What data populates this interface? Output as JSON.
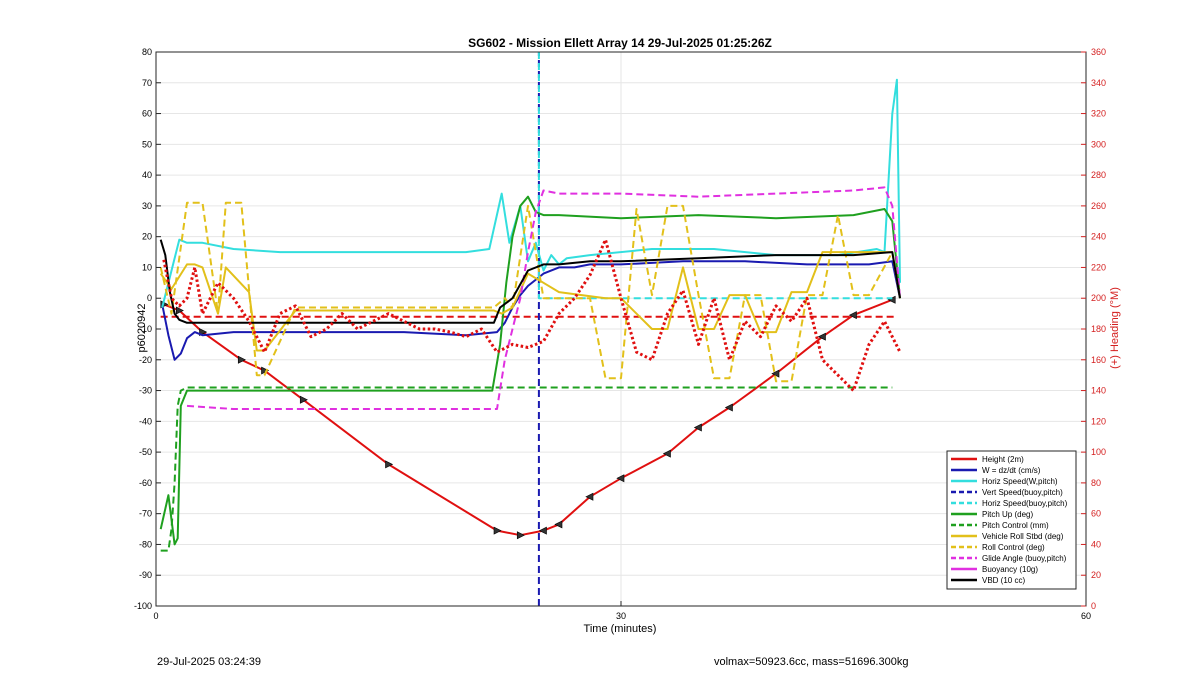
{
  "chart_data": {
    "type": "line",
    "title": "SG602 - Mission Ellett Array 14 29-Jul-2025 01:25:26Z",
    "xlabel": "Time (minutes)",
    "ylabel": "p6020942",
    "ylabel_right": "(+) Heading (°M)",
    "xlim": [
      0,
      60
    ],
    "ylim": [
      -100,
      80
    ],
    "ylim_right": [
      0,
      360
    ],
    "xticks": [
      "0",
      "30",
      "60"
    ],
    "yticks": [
      "-100",
      "-90",
      "-80",
      "-70",
      "-60",
      "-50",
      "-40",
      "-30",
      "-20",
      "-10",
      "0",
      "10",
      "20",
      "30",
      "40",
      "50",
      "60",
      "70",
      "80"
    ],
    "yticks_right": [
      "0",
      "20",
      "40",
      "60",
      "80",
      "100",
      "120",
      "140",
      "160",
      "180",
      "200",
      "220",
      "240",
      "260",
      "280",
      "300",
      "320",
      "340",
      "360"
    ],
    "grid": true,
    "legend_position": "bottom-right",
    "colors": {
      "height": "#e01010",
      "w": "#1a1ab0",
      "horiz_pitch": "#33dede",
      "vert_buoy": "#1a1ab0",
      "horiz_buoy": "#33dede",
      "pitch_up": "#1fa01f",
      "pitch_ctrl": "#1fa01f",
      "roll": "#e2c01a",
      "roll_ctrl": "#e2c01a",
      "glide": "#e030e0",
      "buoy": "#e030e0",
      "vbd": "#000000",
      "heading": "#e01010"
    },
    "series": [
      {
        "key": "height",
        "name": "Height (2m)",
        "style": "solid-markers",
        "x": [
          0.5,
          1.5,
          3,
          5.5,
          7,
          9.5,
          15,
          22,
          23.5,
          25,
          26,
          28,
          30,
          33,
          35,
          37,
          40,
          43,
          45,
          47.5
        ],
        "values": [
          -2,
          -4,
          -11,
          -20,
          -23.5,
          -33,
          -54,
          -75.5,
          -77,
          -75.5,
          -73.5,
          -64.5,
          -58.5,
          -50.5,
          -42,
          -35.5,
          -24.5,
          -12.5,
          -5.5,
          -0.5
        ]
      },
      {
        "key": "w",
        "name": "W = dz/dt (cm/s)",
        "style": "solid",
        "x": [
          0.4,
          0.8,
          1.2,
          1.6,
          2,
          2.5,
          3,
          5,
          8,
          12,
          16,
          20,
          22,
          22.5,
          23,
          23.5,
          24,
          25,
          26,
          27,
          28,
          30,
          34,
          38,
          42,
          46,
          47.5,
          48
        ],
        "values": [
          -2,
          -12,
          -20,
          -18,
          -13,
          -11,
          -12,
          -11,
          -11,
          -11,
          -11,
          -12,
          -11,
          -8,
          -3,
          1,
          4,
          8,
          10,
          10,
          11,
          11,
          12,
          12,
          11,
          11,
          12,
          0
        ]
      },
      {
        "key": "horiz_pitch",
        "name": "Horiz Speed(W,pitch)",
        "style": "solid-noisy",
        "x": [
          0.4,
          1.5,
          2,
          3,
          5,
          8,
          12,
          16,
          20,
          21.5,
          22.3,
          22.8,
          23.5,
          24,
          24.5,
          25,
          25.5,
          26,
          26.5,
          28,
          32,
          36,
          40,
          44,
          46.5,
          47,
          47.5,
          47.8,
          48
        ],
        "values": [
          -3,
          19,
          18,
          18,
          16,
          15,
          15,
          15,
          15,
          16,
          34,
          18,
          30,
          12,
          18,
          9,
          14,
          11,
          13,
          14,
          16,
          16,
          14,
          14,
          16,
          15,
          60,
          71,
          5
        ]
      },
      {
        "key": "vert_buoy",
        "name": "Vert Speed(buoy,pitch)",
        "style": "dashed",
        "x": [
          24.7,
          24.7
        ],
        "values": [
          -100,
          80
        ]
      },
      {
        "key": "horiz_buoy",
        "name": "Horiz Speed(buoy,pitch)",
        "style": "dashed",
        "x": [
          24.7,
          24.7,
          24.8,
          47.5
        ],
        "values": [
          80,
          0,
          0,
          0
        ]
      },
      {
        "key": "pitch_up",
        "name": "Pitch Up (deg)",
        "style": "solid",
        "x": [
          0.3,
          0.8,
          1.2,
          1.4,
          1.6,
          2,
          5,
          10,
          15,
          20,
          21.7,
          22.2,
          22.6,
          23,
          23.5,
          24,
          24.5,
          25,
          26,
          30,
          35,
          40,
          45,
          47,
          47.5,
          48
        ],
        "values": [
          -75,
          -64,
          -80,
          -78,
          -35,
          -30,
          -30,
          -30,
          -30,
          -30,
          -30,
          -15,
          5,
          20,
          30,
          33,
          28,
          27,
          27,
          26,
          27,
          26,
          27,
          29,
          25,
          0
        ]
      },
      {
        "key": "pitch_ctrl",
        "name": "Pitch Control (mm)",
        "style": "dashed",
        "x": [
          0.3,
          0.8,
          1,
          1.2,
          1.4,
          1.6,
          2,
          22,
          22.5,
          24,
          47.5
        ],
        "values": [
          -82,
          -82,
          -75,
          -60,
          -35,
          -30,
          -29,
          -29,
          -29,
          -29,
          -29
        ]
      },
      {
        "key": "roll",
        "name": "Vehicle Roll Stbd (deg)",
        "style": "solid",
        "x": [
          0.3,
          1,
          2,
          2.5,
          3,
          4,
          4.5,
          6,
          6.5,
          7,
          9,
          12,
          16,
          20,
          21.8,
          22.3,
          23,
          24,
          25,
          26,
          29,
          30,
          32,
          33,
          34,
          35,
          36,
          37,
          38,
          39,
          40,
          41,
          42,
          43,
          45,
          46.5,
          47.5,
          48
        ],
        "values": [
          8,
          3,
          11,
          11,
          10,
          -5,
          10,
          2,
          -17,
          -17,
          -4,
          -4,
          -4,
          -4,
          -4,
          -5,
          -3,
          8,
          5,
          2,
          0,
          0,
          -10,
          -10,
          10,
          -10,
          -10,
          1,
          1,
          -11,
          -11,
          2,
          2,
          15,
          15,
          15,
          15,
          0
        ]
      },
      {
        "key": "roll_ctrl",
        "name": "Roll Control (deg)",
        "style": "dashed",
        "x": [
          0.3,
          1,
          2,
          3,
          4,
          4.5,
          5.5,
          6,
          6.5,
          7,
          9,
          12,
          16,
          20,
          21.8,
          22.5,
          23,
          24,
          25,
          26,
          28,
          29,
          30,
          31,
          32,
          33,
          34,
          35,
          36,
          37,
          38,
          39,
          40,
          41,
          42,
          43,
          44,
          45,
          46,
          47.5
        ],
        "values": [
          10,
          -5,
          31,
          31,
          -5,
          31,
          31,
          3,
          -25,
          -25,
          -3,
          -3,
          -3,
          -3,
          -3,
          0,
          -3,
          30,
          0,
          0,
          0,
          -26,
          -26,
          29,
          1,
          30,
          30,
          1,
          -26,
          -26,
          1,
          1,
          -27,
          -27,
          1,
          1,
          27,
          1,
          1,
          15
        ]
      },
      {
        "key": "glide",
        "name": "Glide Angle (buoy,pitch)",
        "style": "dashed",
        "x": [
          2,
          5,
          10,
          15,
          20,
          22,
          22.5,
          23,
          23.5,
          24,
          24.5,
          25,
          26,
          30,
          35,
          40,
          45,
          47,
          47.5,
          48
        ],
        "values": [
          -35,
          -36,
          -36,
          -36,
          -36,
          -36,
          -20,
          -10,
          0,
          15,
          28,
          35,
          34,
          34,
          33,
          34,
          35,
          36,
          30,
          0
        ]
      },
      {
        "key": "buoy",
        "name": "Buoyancy (10g)",
        "style": "solid",
        "x": [],
        "values": []
      },
      {
        "key": "vbd",
        "name": "VBD (10 cc)",
        "style": "solid",
        "x": [
          0.3,
          0.6,
          0.9,
          1.2,
          1.5,
          2,
          5,
          10,
          15,
          20,
          21.8,
          22.2,
          23,
          24,
          25,
          26,
          28,
          30,
          35,
          40,
          45,
          47.5,
          48
        ],
        "values": [
          19,
          14,
          2,
          -5,
          -7,
          -8,
          -8,
          -8,
          -8,
          -8,
          -8,
          -3,
          0,
          9,
          11,
          11,
          12,
          12,
          13,
          14,
          14,
          15,
          0
        ]
      },
      {
        "key": "heading",
        "name": "",
        "axis": "right",
        "style": "dotted",
        "x": [
          0.5,
          1,
          1.5,
          2,
          2.5,
          3,
          3.5,
          4,
          5,
          6,
          7,
          8,
          9,
          10,
          11,
          12,
          13,
          14,
          15,
          16,
          17,
          18,
          19,
          20,
          21,
          22,
          23,
          24,
          25,
          26,
          27,
          28,
          29,
          30,
          31,
          32,
          33,
          34,
          35,
          36,
          37,
          38,
          39,
          40,
          41,
          42,
          43,
          44,
          45,
          46,
          47,
          48
        ],
        "values": [
          225,
          200,
          195,
          200,
          220,
          190,
          200,
          210,
          200,
          185,
          165,
          190,
          195,
          175,
          180,
          190,
          180,
          185,
          190,
          185,
          180,
          180,
          178,
          175,
          180,
          165,
          170,
          168,
          172,
          190,
          200,
          215,
          238,
          200,
          165,
          160,
          190,
          205,
          170,
          200,
          160,
          185,
          175,
          195,
          185,
          200,
          160,
          150,
          140,
          170,
          185,
          165
        ]
      }
    ],
    "ref_lines": [
      {
        "key": "height",
        "axis": "left",
        "y": -6,
        "style": "dashed"
      }
    ]
  },
  "footer": {
    "timestamp": "29-Jul-2025 03:24:39",
    "stats": "volmax=50923.6cc, mass=51696.300kg"
  }
}
